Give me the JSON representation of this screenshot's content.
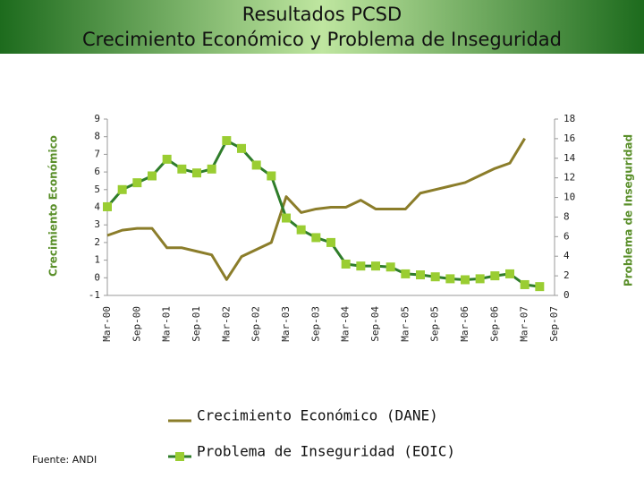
{
  "chart_data": {
    "type": "line",
    "title": "Resultados PCSD",
    "subtitle": "Crecimiento Económico y Problema de Inseguridad",
    "y_label": "Crecimiento Económico",
    "y2_label": "Problema de Inseguridad",
    "source": "Fuente: ANDI",
    "categories": [
      "Mar-00",
      null,
      "Sep-00",
      null,
      "Mar-01",
      null,
      "Sep-01",
      null,
      "Mar-02",
      null,
      "Sep-02",
      null,
      "Mar-03",
      null,
      "Sep-03",
      null,
      "Mar-04",
      null,
      "Sep-04",
      null,
      "Mar-05",
      null,
      "Sep-05",
      null,
      "Mar-06",
      null,
      "Sep-06",
      null,
      "Mar-07",
      null,
      "Sep-07"
    ],
    "ylim": [
      -1,
      9
    ],
    "yticks": [
      -1,
      0,
      1,
      2,
      3,
      4,
      5,
      6,
      7,
      8,
      9
    ],
    "y2lim": [
      0,
      18
    ],
    "y2ticks": [
      0,
      2,
      4,
      6,
      8,
      10,
      12,
      14,
      16,
      18
    ],
    "series": [
      {
        "name": "Crecimiento Económico (DANE)",
        "color": "#8b7d2a",
        "values": [
          2.4,
          2.7,
          2.8,
          2.8,
          1.7,
          1.7,
          1.5,
          1.3,
          -0.1,
          1.2,
          1.6,
          2.0,
          4.6,
          3.7,
          3.9,
          4.0,
          4.0,
          4.4,
          3.9,
          3.9,
          3.9,
          4.8,
          5.0,
          5.2,
          5.4,
          5.8,
          6.2,
          6.5,
          7.9,
          null,
          null
        ]
      },
      {
        "name": "Problema de Inseguridad (EOIC)",
        "color": "#2f7d2a",
        "marker_color": "#9acd32",
        "axis": "y2",
        "values": [
          9.05,
          10.8,
          11.5,
          12.2,
          13.9,
          12.9,
          12.5,
          12.9,
          15.8,
          15.0,
          13.3,
          12.2,
          7.9,
          6.7,
          5.9,
          5.4,
          3.2,
          3.0,
          3.0,
          2.9,
          2.2,
          2.1,
          1.9,
          1.7,
          1.6,
          1.7,
          2.0,
          2.2,
          1.1,
          0.9,
          null
        ]
      }
    ]
  }
}
